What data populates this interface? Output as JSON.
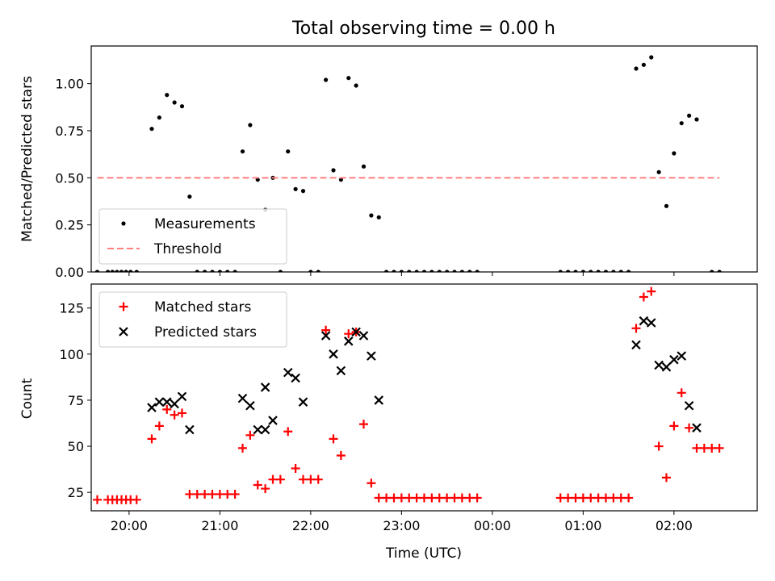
{
  "figure": {
    "title": "Total observing time = 0.00 h",
    "xlabel": "Time (UTC)"
  },
  "chart_data": [
    {
      "type": "scatter",
      "panel": "top",
      "ylabel": "Matched/Predicted stars",
      "ylim": [
        0,
        1.2
      ],
      "yticks": [
        0,
        0.25,
        0.5,
        0.75,
        1.0
      ],
      "ytick_labels": [
        "0.00",
        "0.25",
        "0.50",
        "0.75",
        "1.00"
      ],
      "xlim": [
        "19:35",
        "02:55"
      ],
      "xticks": [
        "20:00",
        "21:00",
        "22:00",
        "23:00",
        "00:00",
        "01:00",
        "02:00"
      ],
      "xtick_labels": [],
      "legend": {
        "placement": "lower-left",
        "entries": [
          "Measurements",
          "Threshold"
        ]
      },
      "series": [
        {
          "name": "Measurements",
          "marker": "dot",
          "color": "#000000",
          "x": [
            "19:39",
            "19:46",
            "19:49",
            "19:52",
            "19:55",
            "19:58",
            "20:01",
            "20:05",
            "20:15",
            "20:20",
            "20:25",
            "20:30",
            "20:35",
            "20:40",
            "20:45",
            "20:50",
            "20:55",
            "21:00",
            "21:05",
            "21:10",
            "21:15",
            "21:20",
            "21:25",
            "21:30",
            "21:35",
            "21:40",
            "21:45",
            "21:50",
            "21:55",
            "22:00",
            "22:05",
            "22:10",
            "22:15",
            "22:20",
            "22:25",
            "22:30",
            "22:35",
            "22:40",
            "22:45",
            "22:50",
            "22:55",
            "23:00",
            "23:05",
            "23:10",
            "23:15",
            "23:20",
            "23:25",
            "23:30",
            "23:35",
            "23:40",
            "23:45",
            "23:50",
            "00:45",
            "00:50",
            "00:55",
            "01:00",
            "01:05",
            "01:10",
            "01:15",
            "01:20",
            "01:25",
            "01:30",
            "01:35",
            "01:40",
            "01:45",
            "01:50",
            "01:55",
            "02:00",
            "02:05",
            "02:10",
            "02:15",
            "02:25",
            "02:30"
          ],
          "y": [
            0,
            0,
            0,
            0,
            0,
            0,
            0,
            0,
            0.76,
            0.82,
            0.94,
            0.9,
            0.88,
            0.4,
            0,
            0,
            0,
            0,
            0,
            0,
            0.64,
            0.78,
            0.49,
            0.33,
            0.5,
            0,
            0.64,
            0.44,
            0.43,
            0,
            0,
            1.02,
            0.54,
            0.49,
            1.03,
            0.99,
            0.56,
            0.3,
            0.29,
            0,
            0,
            0,
            0,
            0,
            0,
            0,
            0,
            0,
            0,
            0,
            0,
            0,
            0,
            0,
            0,
            0,
            0,
            0,
            0,
            0,
            0,
            0,
            1.08,
            1.1,
            1.14,
            0.53,
            0.35,
            0.63,
            0.79,
            0.83,
            0.81,
            0,
            0
          ]
        },
        {
          "name": "Threshold",
          "style": "dashed",
          "color": "#ff7f7f",
          "x": [
            "19:39",
            "02:30"
          ],
          "y": [
            0.5,
            0.5
          ]
        }
      ]
    },
    {
      "type": "scatter",
      "panel": "bottom",
      "ylabel": "Count",
      "ylim": [
        15,
        138
      ],
      "yticks": [
        25,
        50,
        75,
        100,
        125
      ],
      "ytick_labels": [
        "25",
        "50",
        "75",
        "100",
        "125"
      ],
      "xlim": [
        "19:35",
        "02:55"
      ],
      "xticks": [
        "20:00",
        "21:00",
        "22:00",
        "23:00",
        "00:00",
        "01:00",
        "02:00"
      ],
      "xtick_labels": [
        "20:00",
        "21:00",
        "22:00",
        "23:00",
        "00:00",
        "01:00",
        "02:00"
      ],
      "legend": {
        "placement": "upper-left",
        "entries": [
          "Matched stars",
          "Predicted stars"
        ]
      },
      "series": [
        {
          "name": "Matched stars",
          "marker": "plus",
          "color": "#ff0000",
          "x": [
            "19:39",
            "19:46",
            "19:49",
            "19:52",
            "19:55",
            "19:58",
            "20:01",
            "20:05",
            "20:15",
            "20:20",
            "20:25",
            "20:30",
            "20:35",
            "20:40",
            "20:45",
            "20:50",
            "20:55",
            "21:00",
            "21:05",
            "21:10",
            "21:15",
            "21:20",
            "21:25",
            "21:30",
            "21:35",
            "21:40",
            "21:45",
            "21:50",
            "21:55",
            "22:00",
            "22:05",
            "22:10",
            "22:15",
            "22:20",
            "22:25",
            "22:30",
            "22:35",
            "22:40",
            "22:45",
            "22:50",
            "22:55",
            "23:00",
            "23:05",
            "23:10",
            "23:15",
            "23:20",
            "23:25",
            "23:30",
            "23:35",
            "23:40",
            "23:45",
            "23:50",
            "00:45",
            "00:50",
            "00:55",
            "01:00",
            "01:05",
            "01:10",
            "01:15",
            "01:20",
            "01:25",
            "01:30",
            "01:35",
            "01:40",
            "01:45",
            "01:50",
            "01:55",
            "02:00",
            "02:05",
            "02:10",
            "02:15",
            "02:20",
            "02:25",
            "02:30"
          ],
          "y": [
            21,
            21,
            21,
            21,
            21,
            21,
            21,
            21,
            54,
            61,
            70,
            67,
            68,
            24,
            24,
            24,
            24,
            24,
            24,
            24,
            49,
            56,
            29,
            27,
            32,
            32,
            58,
            38,
            32,
            32,
            32,
            113,
            54,
            45,
            111,
            112,
            62,
            30,
            22,
            22,
            22,
            22,
            22,
            22,
            22,
            22,
            22,
            22,
            22,
            22,
            22,
            22,
            22,
            22,
            22,
            22,
            22,
            22,
            22,
            22,
            22,
            22,
            114,
            131,
            134,
            50,
            33,
            61,
            79,
            60,
            49,
            49,
            49,
            49
          ]
        },
        {
          "name": "Predicted stars",
          "marker": "x",
          "color": "#000000",
          "x": [
            "20:15",
            "20:20",
            "20:25",
            "20:30",
            "20:35",
            "20:40",
            "21:15",
            "21:20",
            "21:25",
            "21:30",
            "21:35",
            "21:45",
            "21:50",
            "21:55",
            "22:10",
            "22:15",
            "22:20",
            "22:25",
            "22:30",
            "22:35",
            "22:40",
            "22:45",
            "21:30",
            "01:35",
            "01:40",
            "01:45",
            "01:50",
            "01:55",
            "02:00",
            "02:05",
            "02:10",
            "02:15"
          ],
          "y": [
            71,
            74,
            74,
            73,
            77,
            59,
            76,
            72,
            59,
            82,
            64,
            90,
            87,
            74,
            110,
            100,
            91,
            107,
            112,
            110,
            99,
            75,
            59,
            105,
            118,
            117,
            94,
            93,
            97,
            99,
            72,
            60
          ]
        }
      ]
    }
  ]
}
